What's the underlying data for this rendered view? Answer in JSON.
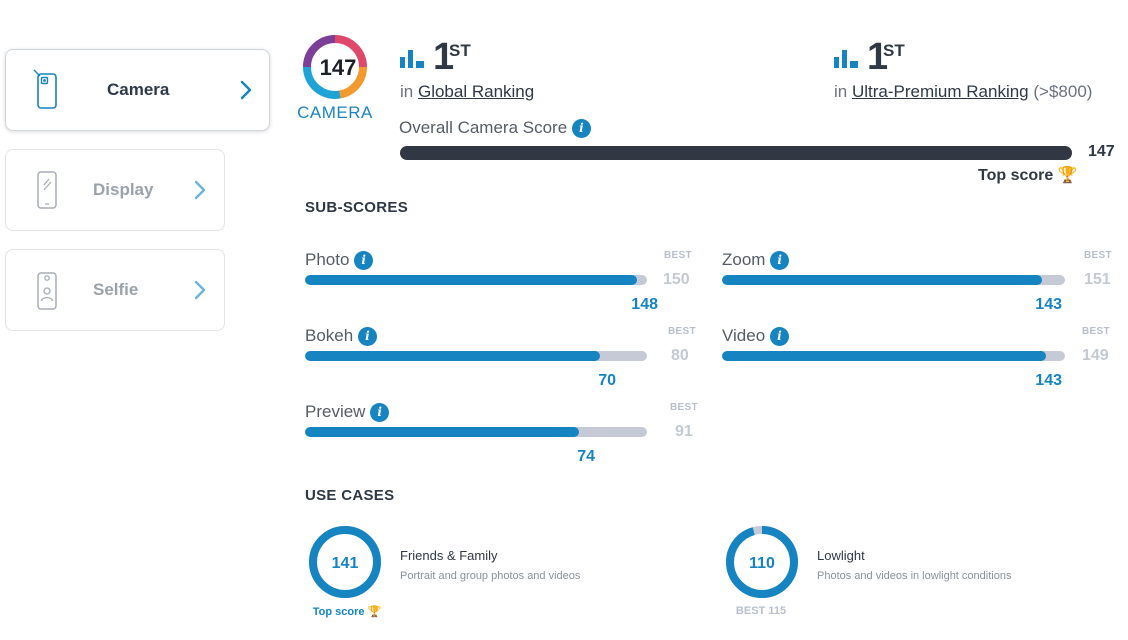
{
  "sidebar": {
    "items": [
      {
        "label": "Camera",
        "active": true,
        "icon": "camera-phone-icon"
      },
      {
        "label": "Display",
        "active": false,
        "icon": "display-phone-icon"
      },
      {
        "label": "Selfie",
        "active": false,
        "icon": "selfie-phone-icon"
      }
    ]
  },
  "badge": {
    "score": "147",
    "category": "CAMERA"
  },
  "rankings": {
    "global": {
      "rank": "1",
      "suffix": "ST",
      "prefix": "in",
      "link": "Global Ranking",
      "extra": ""
    },
    "segment": {
      "rank": "1",
      "suffix": "ST",
      "prefix": "in",
      "link": "Ultra-Premium Ranking",
      "extra": "(>$800)"
    }
  },
  "overall": {
    "label": "Overall Camera Score",
    "value": "147",
    "fraction": 1.0,
    "top_label": "Top score"
  },
  "subscores": {
    "title": "SUB-SCORES",
    "best_label": "BEST",
    "items": [
      {
        "name": "Photo",
        "value": "148",
        "best": "150"
      },
      {
        "name": "Zoom",
        "value": "143",
        "best": "151"
      },
      {
        "name": "Bokeh",
        "value": "70",
        "best": "80"
      },
      {
        "name": "Video",
        "value": "143",
        "best": "149"
      },
      {
        "name": "Preview",
        "value": "74",
        "best": "91"
      }
    ]
  },
  "use_cases": {
    "title": "USE CASES",
    "items": [
      {
        "score": "141",
        "best": "141",
        "title": "Friends & Family",
        "description": "Portrait and group photos and videos",
        "footer": "Top score"
      },
      {
        "score": "110",
        "best": "115",
        "title": "Lowlight",
        "description": "Photos and videos in lowlight conditions",
        "footer": "BEST 115"
      }
    ]
  },
  "colors": {
    "accent": "#1584c1",
    "dark": "#323843",
    "track": "#c5cad6",
    "trophy": "#f2b01e"
  }
}
